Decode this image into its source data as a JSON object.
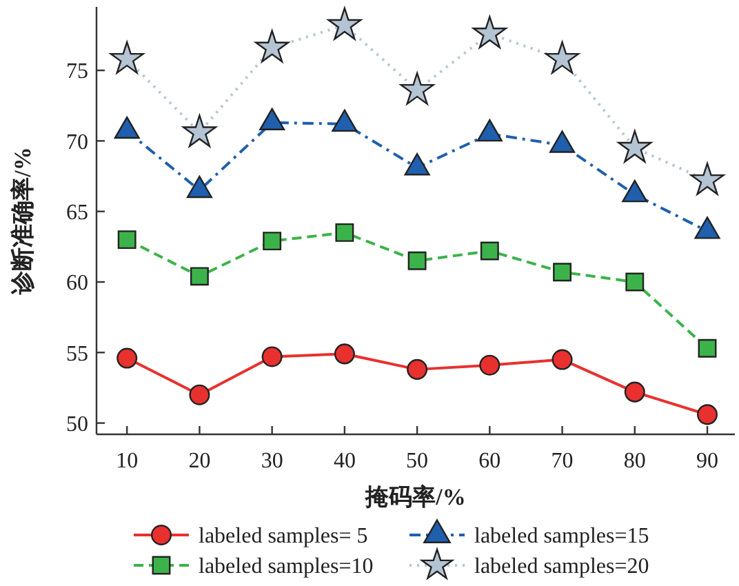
{
  "chart_data": {
    "type": "line",
    "xlabel": "掩码率/%",
    "ylabel": "诊断准确率/%",
    "x": [
      10,
      20,
      30,
      40,
      50,
      60,
      70,
      80,
      90
    ],
    "xlim": [
      5.8,
      93.8
    ],
    "xticks": [
      10,
      20,
      30,
      40,
      50,
      60,
      70,
      80,
      90
    ],
    "ylim": [
      49.2,
      79.5
    ],
    "yticks": [
      50,
      55,
      60,
      65,
      70,
      75
    ],
    "grid": false,
    "legend": "bottom",
    "series": [
      {
        "name": "labeled samples= 5",
        "color": "#e8312f",
        "marker": "circle",
        "line_style": "solid",
        "values": [
          54.6,
          52.0,
          54.7,
          54.9,
          53.8,
          54.1,
          54.5,
          52.2,
          50.6
        ]
      },
      {
        "name": "labeled samples=10",
        "color": "#3cb34a",
        "marker": "square",
        "line_style": "dashed",
        "values": [
          63.0,
          60.4,
          62.9,
          63.5,
          61.5,
          62.2,
          60.7,
          60.0,
          55.3
        ]
      },
      {
        "name": "labeled samples=15",
        "color": "#1f5fad",
        "marker": "triangle",
        "line_style": "dashdot",
        "values": [
          70.7,
          66.5,
          71.3,
          71.2,
          68.1,
          70.5,
          69.7,
          66.2,
          63.6
        ]
      },
      {
        "name": "labeled samples=20",
        "color": "#b4c4d3",
        "marker": "star",
        "line_style": "dotted",
        "values": [
          75.8,
          70.6,
          76.6,
          78.2,
          73.6,
          77.6,
          75.8,
          69.5,
          67.2
        ]
      }
    ]
  }
}
